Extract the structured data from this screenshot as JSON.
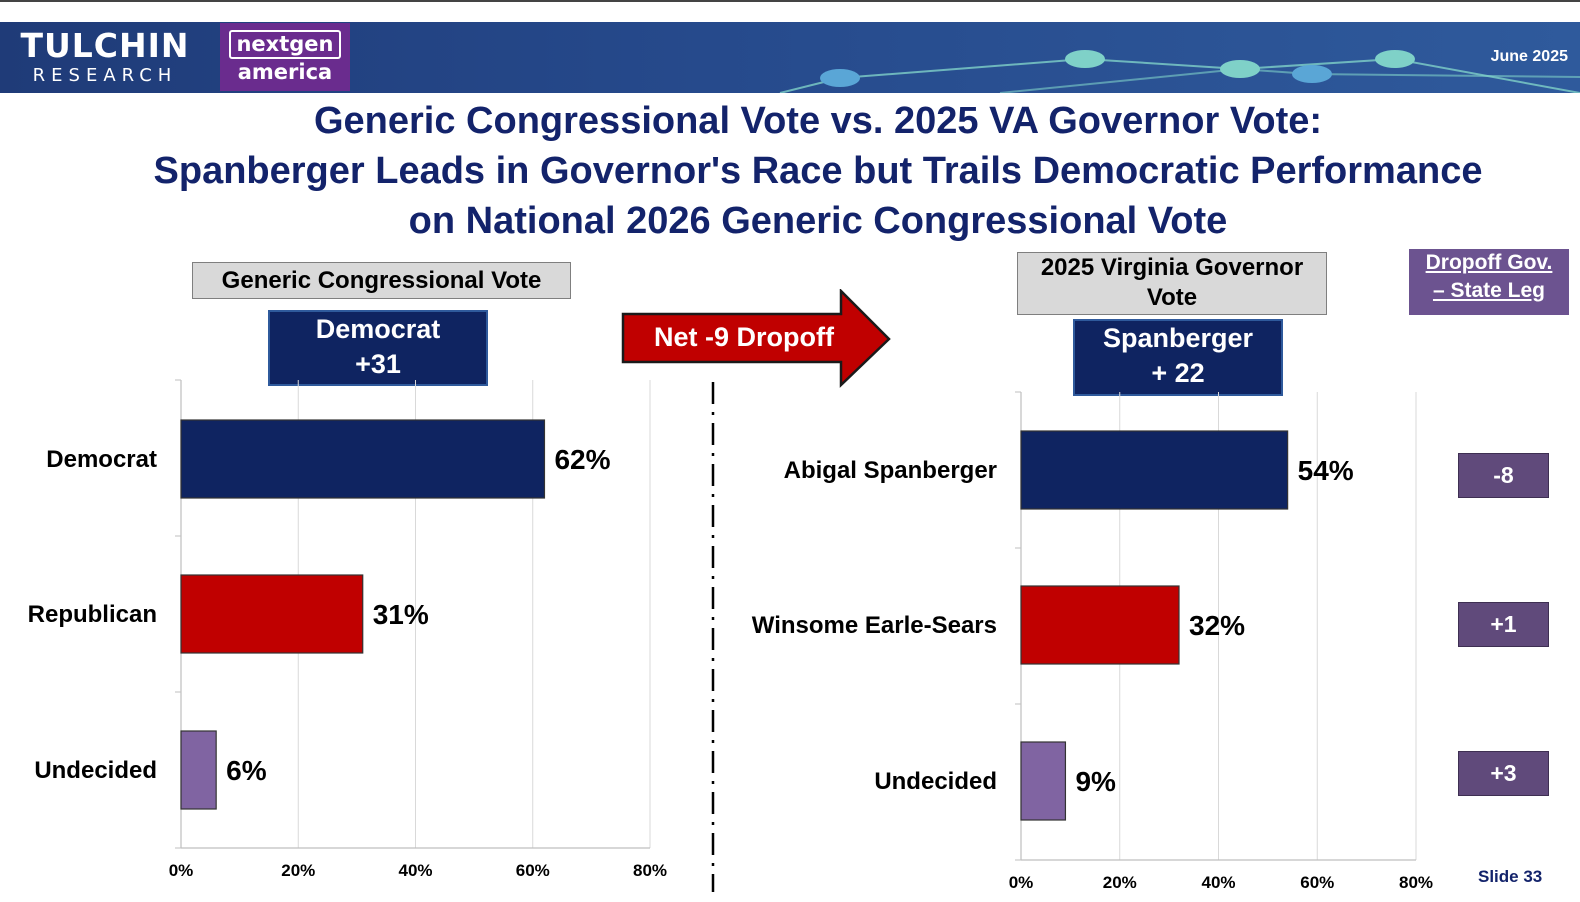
{
  "header": {
    "logo1_line1": "TULCHIN",
    "logo1_line2": "RESEARCH",
    "logo2_line1": "nextgen",
    "logo2_line2": "america",
    "date": "June 2025"
  },
  "title_lines": [
    "Generic Congressional Vote vs. 2025 VA Governor Vote:",
    "Spanberger Leads in Governor's Race but Trails Democratic Performance",
    "on National 2026 Generic Congressional Vote"
  ],
  "left_panel": {
    "label": "Generic Congressional Vote",
    "margin_line1": "Democrat",
    "margin_line2": "+31"
  },
  "net_arrow": {
    "label": "Net -9 Dropoff"
  },
  "right_panel": {
    "label_line1": "2025 Virginia Governor",
    "label_line2": "Vote",
    "margin_line1": "Spanberger",
    "margin_line2": "+ 22"
  },
  "dropoff": {
    "title_line1": "Dropoff Gov.",
    "title_line2": "– State Leg",
    "values": [
      "-8",
      "+1",
      "+3"
    ]
  },
  "colors": {
    "navy": "#0f2461",
    "red": "#c00000",
    "purple": "#8064a2",
    "title": "#13236b",
    "dropoff_purple": "#604a7b"
  },
  "chart_data": [
    {
      "type": "bar",
      "orientation": "horizontal",
      "title": "Generic Congressional Vote",
      "categories": [
        "Democrat",
        "Republican",
        "Undecided"
      ],
      "values": [
        62,
        31,
        6
      ],
      "value_labels": [
        "62%",
        "31%",
        "6%"
      ],
      "bar_colors": [
        "#0f2461",
        "#c00000",
        "#8064a2"
      ],
      "xlim": [
        0,
        80
      ],
      "xticks": [
        "0%",
        "20%",
        "40%",
        "60%",
        "80%"
      ],
      "grid": true
    },
    {
      "type": "bar",
      "orientation": "horizontal",
      "title": "2025 Virginia Governor Vote",
      "categories": [
        "Abigal Spanberger",
        "Winsome Earle-Sears",
        "Undecided"
      ],
      "values": [
        54,
        32,
        9
      ],
      "value_labels": [
        "54%",
        "32%",
        "9%"
      ],
      "bar_colors": [
        "#0f2461",
        "#c00000",
        "#8064a2"
      ],
      "xlim": [
        0,
        80
      ],
      "xticks": [
        "0%",
        "20%",
        "40%",
        "60%",
        "80%"
      ],
      "grid": true
    }
  ],
  "footer": {
    "slide": "Slide 33"
  }
}
